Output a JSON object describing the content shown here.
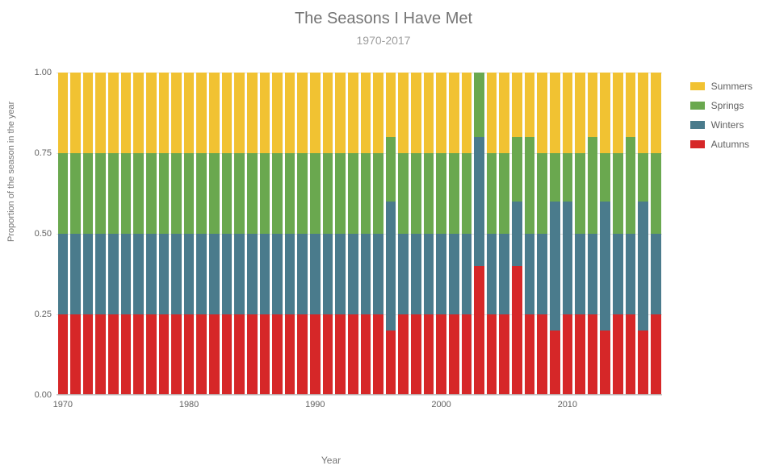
{
  "chart": {
    "type": "stacked-bar-100pct",
    "title": "The Seasons I Have Met",
    "subtitle": "1970-2017",
    "title_fontsize": 20,
    "subtitle_fontsize": 14,
    "title_color": "#757575",
    "subtitle_color": "#9e9e9e",
    "background_color": "#ffffff",
    "grid_color": "#e0e0e0",
    "axis_line_color": "#bdbdbd",
    "label_fontsize": 11,
    "x_axis": {
      "title": "Year",
      "start": 1970,
      "end": 2017,
      "tick_step": 10,
      "ticks": [
        1970,
        1980,
        1990,
        2000,
        2010
      ]
    },
    "y_axis": {
      "title": "Proportion of the season in the year",
      "min": 0.0,
      "max": 1.0,
      "tick_step": 0.25,
      "tick_labels": [
        "0.00",
        "0.25",
        "0.50",
        "0.75",
        "1.00"
      ]
    },
    "series": [
      {
        "key": "autumns",
        "label": "Autumns",
        "color": "#d62728"
      },
      {
        "key": "winters",
        "label": "Winters",
        "color": "#4a7b8c"
      },
      {
        "key": "springs",
        "label": "Springs",
        "color": "#6aa84f"
      },
      {
        "key": "summers",
        "label": "Summers",
        "color": "#f1c232"
      }
    ],
    "legend_order": [
      "summers",
      "springs",
      "winters",
      "autumns"
    ],
    "years": {
      "1970": {
        "autumns": 0.25,
        "winters": 0.25,
        "springs": 0.25,
        "summers": 0.25
      },
      "1971": {
        "autumns": 0.25,
        "winters": 0.25,
        "springs": 0.25,
        "summers": 0.25
      },
      "1972": {
        "autumns": 0.25,
        "winters": 0.25,
        "springs": 0.25,
        "summers": 0.25
      },
      "1973": {
        "autumns": 0.25,
        "winters": 0.25,
        "springs": 0.25,
        "summers": 0.25
      },
      "1974": {
        "autumns": 0.25,
        "winters": 0.25,
        "springs": 0.25,
        "summers": 0.25
      },
      "1975": {
        "autumns": 0.25,
        "winters": 0.25,
        "springs": 0.25,
        "summers": 0.25
      },
      "1976": {
        "autumns": 0.25,
        "winters": 0.25,
        "springs": 0.25,
        "summers": 0.25
      },
      "1977": {
        "autumns": 0.25,
        "winters": 0.25,
        "springs": 0.25,
        "summers": 0.25
      },
      "1978": {
        "autumns": 0.25,
        "winters": 0.25,
        "springs": 0.25,
        "summers": 0.25
      },
      "1979": {
        "autumns": 0.25,
        "winters": 0.25,
        "springs": 0.25,
        "summers": 0.25
      },
      "1980": {
        "autumns": 0.25,
        "winters": 0.25,
        "springs": 0.25,
        "summers": 0.25
      },
      "1981": {
        "autumns": 0.25,
        "winters": 0.25,
        "springs": 0.25,
        "summers": 0.25
      },
      "1982": {
        "autumns": 0.25,
        "winters": 0.25,
        "springs": 0.25,
        "summers": 0.25
      },
      "1983": {
        "autumns": 0.25,
        "winters": 0.25,
        "springs": 0.25,
        "summers": 0.25
      },
      "1984": {
        "autumns": 0.25,
        "winters": 0.25,
        "springs": 0.25,
        "summers": 0.25
      },
      "1985": {
        "autumns": 0.25,
        "winters": 0.25,
        "springs": 0.25,
        "summers": 0.25
      },
      "1986": {
        "autumns": 0.25,
        "winters": 0.25,
        "springs": 0.25,
        "summers": 0.25
      },
      "1987": {
        "autumns": 0.25,
        "winters": 0.25,
        "springs": 0.25,
        "summers": 0.25
      },
      "1988": {
        "autumns": 0.25,
        "winters": 0.25,
        "springs": 0.25,
        "summers": 0.25
      },
      "1989": {
        "autumns": 0.25,
        "winters": 0.25,
        "springs": 0.25,
        "summers": 0.25
      },
      "1990": {
        "autumns": 0.25,
        "winters": 0.25,
        "springs": 0.25,
        "summers": 0.25
      },
      "1991": {
        "autumns": 0.25,
        "winters": 0.25,
        "springs": 0.25,
        "summers": 0.25
      },
      "1992": {
        "autumns": 0.25,
        "winters": 0.25,
        "springs": 0.25,
        "summers": 0.25
      },
      "1993": {
        "autumns": 0.25,
        "winters": 0.25,
        "springs": 0.25,
        "summers": 0.25
      },
      "1994": {
        "autumns": 0.25,
        "winters": 0.25,
        "springs": 0.25,
        "summers": 0.25
      },
      "1995": {
        "autumns": 0.25,
        "winters": 0.25,
        "springs": 0.25,
        "summers": 0.25
      },
      "1996": {
        "autumns": 0.2,
        "winters": 0.4,
        "springs": 0.2,
        "summers": 0.2
      },
      "1997": {
        "autumns": 0.25,
        "winters": 0.25,
        "springs": 0.25,
        "summers": 0.25
      },
      "1998": {
        "autumns": 0.25,
        "winters": 0.25,
        "springs": 0.25,
        "summers": 0.25
      },
      "1999": {
        "autumns": 0.25,
        "winters": 0.25,
        "springs": 0.25,
        "summers": 0.25
      },
      "2000": {
        "autumns": 0.25,
        "winters": 0.25,
        "springs": 0.25,
        "summers": 0.25
      },
      "2001": {
        "autumns": 0.25,
        "winters": 0.25,
        "springs": 0.25,
        "summers": 0.25
      },
      "2002": {
        "autumns": 0.25,
        "winters": 0.25,
        "springs": 0.25,
        "summers": 0.25
      },
      "2003": {
        "autumns": 0.4,
        "winters": 0.4,
        "springs": 0.2,
        "summers": 0.0
      },
      "2004": {
        "autumns": 0.25,
        "winters": 0.25,
        "springs": 0.25,
        "summers": 0.25
      },
      "2005": {
        "autumns": 0.25,
        "winters": 0.25,
        "springs": 0.25,
        "summers": 0.25
      },
      "2006": {
        "autumns": 0.4,
        "winters": 0.2,
        "springs": 0.2,
        "summers": 0.2
      },
      "2007": {
        "autumns": 0.25,
        "winters": 0.25,
        "springs": 0.3,
        "summers": 0.2
      },
      "2008": {
        "autumns": 0.25,
        "winters": 0.25,
        "springs": 0.25,
        "summers": 0.25
      },
      "2009": {
        "autumns": 0.2,
        "winters": 0.4,
        "springs": 0.15,
        "summers": 0.25
      },
      "2010": {
        "autumns": 0.25,
        "winters": 0.35,
        "springs": 0.15,
        "summers": 0.25
      },
      "2011": {
        "autumns": 0.25,
        "winters": 0.25,
        "springs": 0.25,
        "summers": 0.25
      },
      "2012": {
        "autumns": 0.25,
        "winters": 0.25,
        "springs": 0.3,
        "summers": 0.2
      },
      "2013": {
        "autumns": 0.2,
        "winters": 0.4,
        "springs": 0.15,
        "summers": 0.25
      },
      "2014": {
        "autumns": 0.25,
        "winters": 0.25,
        "springs": 0.25,
        "summers": 0.25
      },
      "2015": {
        "autumns": 0.25,
        "winters": 0.25,
        "springs": 0.3,
        "summers": 0.2
      },
      "2016": {
        "autumns": 0.2,
        "winters": 0.4,
        "springs": 0.15,
        "summers": 0.25
      },
      "2017": {
        "autumns": 0.25,
        "winters": 0.25,
        "springs": 0.25,
        "summers": 0.25
      }
    }
  }
}
